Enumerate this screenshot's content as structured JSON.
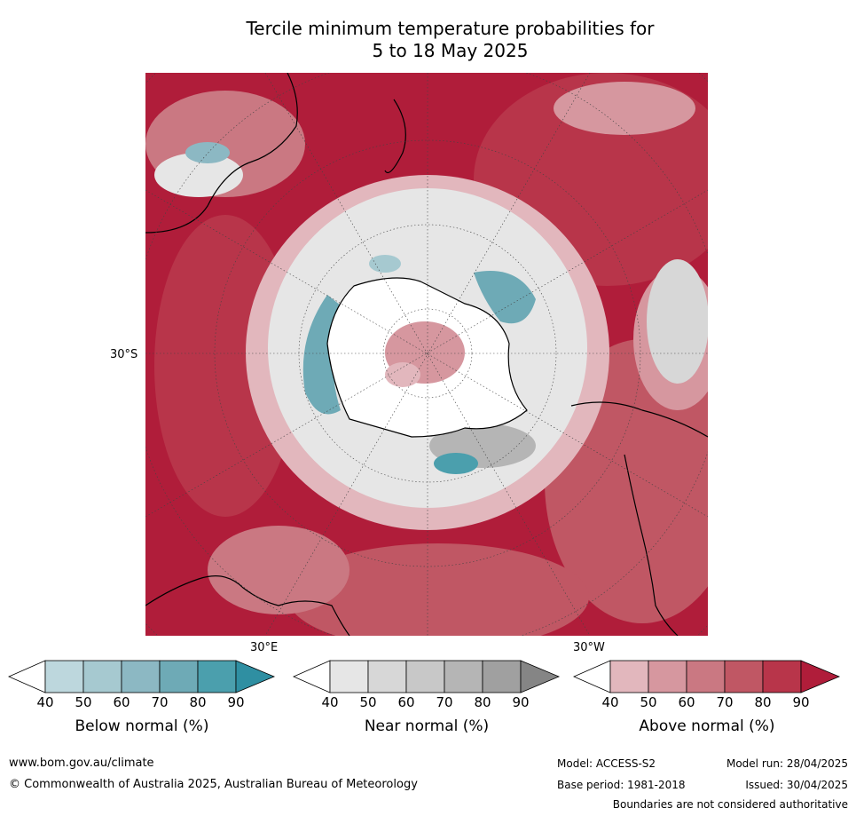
{
  "title": {
    "line1": "Tercile minimum temperature probabilities for",
    "line2": "5 to 18 May 2025"
  },
  "map": {
    "projection": "south polar stereographic",
    "labels": {
      "lat": "30°S",
      "lon_east": "30°E",
      "lon_west": "30°W"
    }
  },
  "colorbars": [
    {
      "id": "below",
      "title": "Below normal (%)",
      "ticks": [
        "40",
        "50",
        "60",
        "70",
        "80",
        "90"
      ],
      "colors": [
        "#ffffff",
        "#bdd7dd",
        "#a6c9d0",
        "#8cb8c3",
        "#6eaab6",
        "#4b9fad",
        "#2f8fa2"
      ]
    },
    {
      "id": "near",
      "title": "Near normal (%)",
      "ticks": [
        "40",
        "50",
        "60",
        "70",
        "80",
        "90"
      ],
      "colors": [
        "#ffffff",
        "#e6e6e6",
        "#d7d7d7",
        "#c8c8c8",
        "#b5b5b5",
        "#a0a0a0",
        "#858585"
      ]
    },
    {
      "id": "above",
      "title": "Above normal (%)",
      "ticks": [
        "40",
        "50",
        "60",
        "70",
        "80",
        "90"
      ],
      "colors": [
        "#ffffff",
        "#e2b7bd",
        "#d6979f",
        "#ca7882",
        "#c05764",
        "#b8354a",
        "#b01d3a"
      ]
    }
  ],
  "footer": {
    "url": "www.bom.gov.au/climate",
    "copyright": "© Commonwealth of Australia 2025, Australian Bureau of Meteorology",
    "model": "Model: ACCESS-S2",
    "model_run": "Model run: 28/04/2025",
    "base_period": "Base period: 1981-2018",
    "issued": "Issued: 30/04/2025",
    "disclaimer": "Boundaries are not considered authoritative"
  }
}
